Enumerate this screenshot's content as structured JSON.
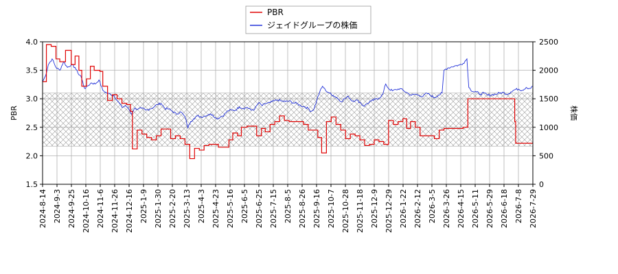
{
  "chart_data": {
    "type": "line",
    "legend": {
      "placement": "top-center",
      "entries": [
        "PBR",
        "ジェイドグループの株価"
      ]
    },
    "y_left": {
      "label": "PBR",
      "range": [
        1.5,
        4.0
      ],
      "ticks": [
        "1.5",
        "2.0",
        "2.5",
        "3.0",
        "3.5",
        "4.0"
      ]
    },
    "y_right": {
      "label": "株価",
      "range": [
        0,
        2500
      ],
      "ticks": [
        "0",
        "500",
        "1000",
        "1500",
        "2000",
        "2500"
      ]
    },
    "x_ticks": [
      "2024-8-14",
      "2024-9-3",
      "2024-9-25",
      "2024-10-16",
      "2024-11-6",
      "2024-11-26",
      "2024-12-16",
      "2025-1-9",
      "2025-1-30",
      "2025-2-20",
      "2025-3-13",
      "2025-4-3",
      "2025-4-23",
      "2025-5-16",
      "2025-6-5",
      "2025-6-25",
      "2025-7-15",
      "2025-8-5",
      "2025-8-26",
      "2025-9-16",
      "2025-10-7",
      "2025-10-28",
      "2025-11-18",
      "2025-12-9",
      "2025-12-29",
      "2026-1-22",
      "2026-2-12",
      "2026-3-5",
      "2026-3-26",
      "2026-4-15",
      "2026-5-11",
      "2026-5-29",
      "2026-6-18",
      "2026-7-8",
      "2026-7-29"
    ],
    "grid": true,
    "band": {
      "pbr_range": [
        2.17,
        3.1
      ],
      "pattern": "crosshatch"
    },
    "colors": {
      "pbr": "#e00000",
      "price": "#2030d8",
      "band": "#999999",
      "grid": "#b0b0b0"
    },
    "pbr_steps": [
      [
        0,
        3.3
      ],
      [
        4,
        3.95
      ],
      [
        9,
        3.92
      ],
      [
        14,
        3.7
      ],
      [
        18,
        3.65
      ],
      [
        24,
        3.85
      ],
      [
        30,
        3.6
      ],
      [
        34,
        3.75
      ],
      [
        38,
        3.5
      ],
      [
        41,
        3.22
      ],
      [
        46,
        3.35
      ],
      [
        50,
        3.57
      ],
      [
        54,
        3.5
      ],
      [
        60,
        3.48
      ],
      [
        63,
        3.22
      ],
      [
        68,
        2.97
      ],
      [
        73,
        3.07
      ],
      [
        78,
        3.0
      ],
      [
        83,
        2.92
      ],
      [
        88,
        2.9
      ],
      [
        92,
        2.78
      ],
      [
        94,
        2.12
      ],
      [
        99,
        2.45
      ],
      [
        104,
        2.38
      ],
      [
        109,
        2.32
      ],
      [
        114,
        2.28
      ],
      [
        119,
        2.35
      ],
      [
        124,
        2.47
      ],
      [
        129,
        2.47
      ],
      [
        134,
        2.3
      ],
      [
        139,
        2.35
      ],
      [
        144,
        2.3
      ],
      [
        149,
        2.2
      ],
      [
        154,
        1.95
      ],
      [
        159,
        2.13
      ],
      [
        164,
        2.1
      ],
      [
        169,
        2.18
      ],
      [
        174,
        2.2
      ],
      [
        179,
        2.2
      ],
      [
        184,
        2.15
      ],
      [
        190,
        2.15
      ],
      [
        195,
        2.28
      ],
      [
        199,
        2.4
      ],
      [
        204,
        2.35
      ],
      [
        208,
        2.5
      ],
      [
        214,
        2.52
      ],
      [
        220,
        2.52
      ],
      [
        224,
        2.35
      ],
      [
        229,
        2.48
      ],
      [
        233,
        2.42
      ],
      [
        238,
        2.55
      ],
      [
        243,
        2.6
      ],
      [
        248,
        2.7
      ],
      [
        253,
        2.62
      ],
      [
        258,
        2.6
      ],
      [
        263,
        2.6
      ],
      [
        268,
        2.6
      ],
      [
        273,
        2.55
      ],
      [
        278,
        2.45
      ],
      [
        283,
        2.45
      ],
      [
        288,
        2.32
      ],
      [
        292,
        2.05
      ],
      [
        297,
        2.6
      ],
      [
        302,
        2.68
      ],
      [
        307,
        2.55
      ],
      [
        312,
        2.45
      ],
      [
        317,
        2.3
      ],
      [
        322,
        2.38
      ],
      [
        327,
        2.35
      ],
      [
        332,
        2.28
      ],
      [
        337,
        2.18
      ],
      [
        342,
        2.2
      ],
      [
        347,
        2.28
      ],
      [
        352,
        2.25
      ],
      [
        357,
        2.2
      ],
      [
        362,
        2.62
      ],
      [
        367,
        2.55
      ],
      [
        372,
        2.6
      ],
      [
        377,
        2.65
      ],
      [
        381,
        2.48
      ],
      [
        385,
        2.6
      ],
      [
        390,
        2.5
      ],
      [
        395,
        2.35
      ],
      [
        400,
        2.35
      ],
      [
        405,
        2.35
      ],
      [
        410,
        2.3
      ],
      [
        415,
        2.45
      ],
      [
        420,
        2.48
      ],
      [
        425,
        2.48
      ],
      [
        430,
        2.48
      ],
      [
        435,
        2.48
      ],
      [
        440,
        2.5
      ],
      [
        445,
        3.0
      ],
      [
        450,
        3.0
      ],
      [
        455,
        3.0
      ],
      [
        460,
        3.0
      ],
      [
        465,
        3.0
      ],
      [
        470,
        3.0
      ],
      [
        475,
        3.0
      ],
      [
        480,
        3.0
      ],
      [
        485,
        3.0
      ],
      [
        490,
        3.0
      ],
      [
        494,
        2.6
      ],
      [
        495,
        2.22
      ],
      [
        505,
        2.22
      ],
      [
        513,
        2.22
      ]
    ],
    "price_points": [
      [
        0,
        1800
      ],
      [
        3,
        1900
      ],
      [
        6,
        2100
      ],
      [
        10,
        2200
      ],
      [
        14,
        2050
      ],
      [
        18,
        2000
      ],
      [
        22,
        2150
      ],
      [
        26,
        2050
      ],
      [
        30,
        2100
      ],
      [
        34,
        2050
      ],
      [
        37,
        1950
      ],
      [
        40,
        1900
      ],
      [
        44,
        1680
      ],
      [
        47,
        1720
      ],
      [
        51,
        1780
      ],
      [
        55,
        1760
      ],
      [
        59,
        1830
      ],
      [
        63,
        1650
      ],
      [
        67,
        1600
      ],
      [
        71,
        1580
      ],
      [
        75,
        1550
      ],
      [
        79,
        1450
      ],
      [
        83,
        1350
      ],
      [
        87,
        1380
      ],
      [
        91,
        1300
      ],
      [
        93,
        1230
      ],
      [
        96,
        1330
      ],
      [
        100,
        1320
      ],
      [
        104,
        1330
      ],
      [
        108,
        1300
      ],
      [
        112,
        1320
      ],
      [
        116,
        1350
      ],
      [
        120,
        1400
      ],
      [
        124,
        1420
      ],
      [
        128,
        1330
      ],
      [
        132,
        1320
      ],
      [
        136,
        1280
      ],
      [
        140,
        1230
      ],
      [
        144,
        1270
      ],
      [
        147,
        1230
      ],
      [
        150,
        1140
      ],
      [
        152,
        990
      ],
      [
        155,
        1100
      ],
      [
        158,
        1150
      ],
      [
        162,
        1200
      ],
      [
        166,
        1180
      ],
      [
        170,
        1200
      ],
      [
        174,
        1230
      ],
      [
        178,
        1220
      ],
      [
        182,
        1150
      ],
      [
        186,
        1180
      ],
      [
        190,
        1220
      ],
      [
        194,
        1290
      ],
      [
        198,
        1300
      ],
      [
        202,
        1300
      ],
      [
        206,
        1360
      ],
      [
        210,
        1330
      ],
      [
        214,
        1350
      ],
      [
        218,
        1300
      ],
      [
        222,
        1320
      ],
      [
        226,
        1430
      ],
      [
        230,
        1380
      ],
      [
        234,
        1420
      ],
      [
        238,
        1430
      ],
      [
        242,
        1460
      ],
      [
        246,
        1480
      ],
      [
        250,
        1460
      ],
      [
        254,
        1450
      ],
      [
        258,
        1460
      ],
      [
        262,
        1430
      ],
      [
        266,
        1420
      ],
      [
        270,
        1380
      ],
      [
        274,
        1360
      ],
      [
        278,
        1330
      ],
      [
        281,
        1280
      ],
      [
        284,
        1320
      ],
      [
        287,
        1480
      ],
      [
        290,
        1620
      ],
      [
        293,
        1720
      ],
      [
        296,
        1650
      ],
      [
        300,
        1600
      ],
      [
        304,
        1560
      ],
      [
        308,
        1520
      ],
      [
        312,
        1450
      ],
      [
        316,
        1500
      ],
      [
        320,
        1540
      ],
      [
        324,
        1460
      ],
      [
        328,
        1480
      ],
      [
        332,
        1440
      ],
      [
        336,
        1370
      ],
      [
        340,
        1420
      ],
      [
        344,
        1460
      ],
      [
        348,
        1490
      ],
      [
        352,
        1510
      ],
      [
        356,
        1580
      ],
      [
        359,
        1760
      ],
      [
        362,
        1680
      ],
      [
        366,
        1640
      ],
      [
        370,
        1660
      ],
      [
        374,
        1680
      ],
      [
        378,
        1640
      ],
      [
        382,
        1600
      ],
      [
        386,
        1560
      ],
      [
        390,
        1580
      ],
      [
        394,
        1560
      ],
      [
        398,
        1540
      ],
      [
        402,
        1600
      ],
      [
        406,
        1560
      ],
      [
        410,
        1520
      ],
      [
        414,
        1560
      ],
      [
        418,
        1600
      ],
      [
        420,
        2000
      ],
      [
        424,
        2040
      ],
      [
        428,
        2060
      ],
      [
        432,
        2080
      ],
      [
        436,
        2090
      ],
      [
        440,
        2120
      ],
      [
        444,
        2200
      ],
      [
        446,
        1700
      ],
      [
        450,
        1630
      ],
      [
        454,
        1620
      ],
      [
        458,
        1580
      ],
      [
        462,
        1600
      ],
      [
        466,
        1560
      ],
      [
        470,
        1570
      ],
      [
        474,
        1580
      ],
      [
        478,
        1600
      ],
      [
        482,
        1610
      ],
      [
        486,
        1580
      ],
      [
        490,
        1620
      ],
      [
        494,
        1660
      ],
      [
        498,
        1670
      ],
      [
        502,
        1650
      ],
      [
        506,
        1700
      ],
      [
        510,
        1680
      ],
      [
        513,
        1720
      ]
    ]
  }
}
